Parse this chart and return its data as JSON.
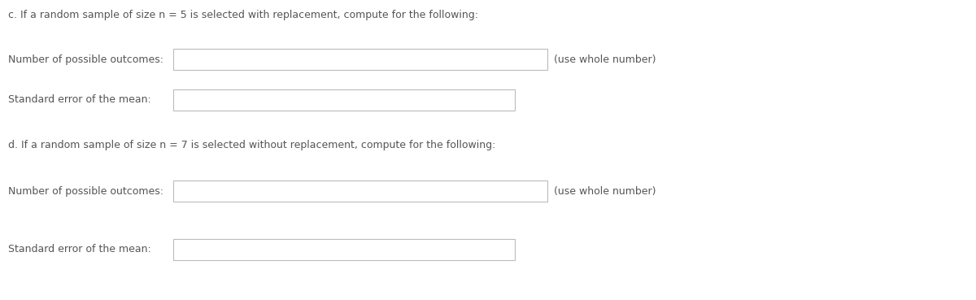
{
  "background_color": "#ffffff",
  "text_color": "#555555",
  "line1": "c. If a random sample of size n = 5 is selected with replacement, compute for the following:",
  "label_outcomes_c": "Number of possible outcomes:",
  "hint_c": "(use whole number)",
  "label_sem_c": "Standard error of the mean:",
  "line2": "d. If a random sample of size n = 7 is selected without replacement, compute for the following:",
  "label_outcomes_d": "Number of possible outcomes:",
  "hint_d": "(use whole number)",
  "label_sem_d": "Standard error of the mean:",
  "box_edge_color": "#bbbbbb",
  "box_fill_color": "#ffffff",
  "font_size": 9.0,
  "fig_width": 12.0,
  "fig_height": 3.69,
  "dpi": 100
}
